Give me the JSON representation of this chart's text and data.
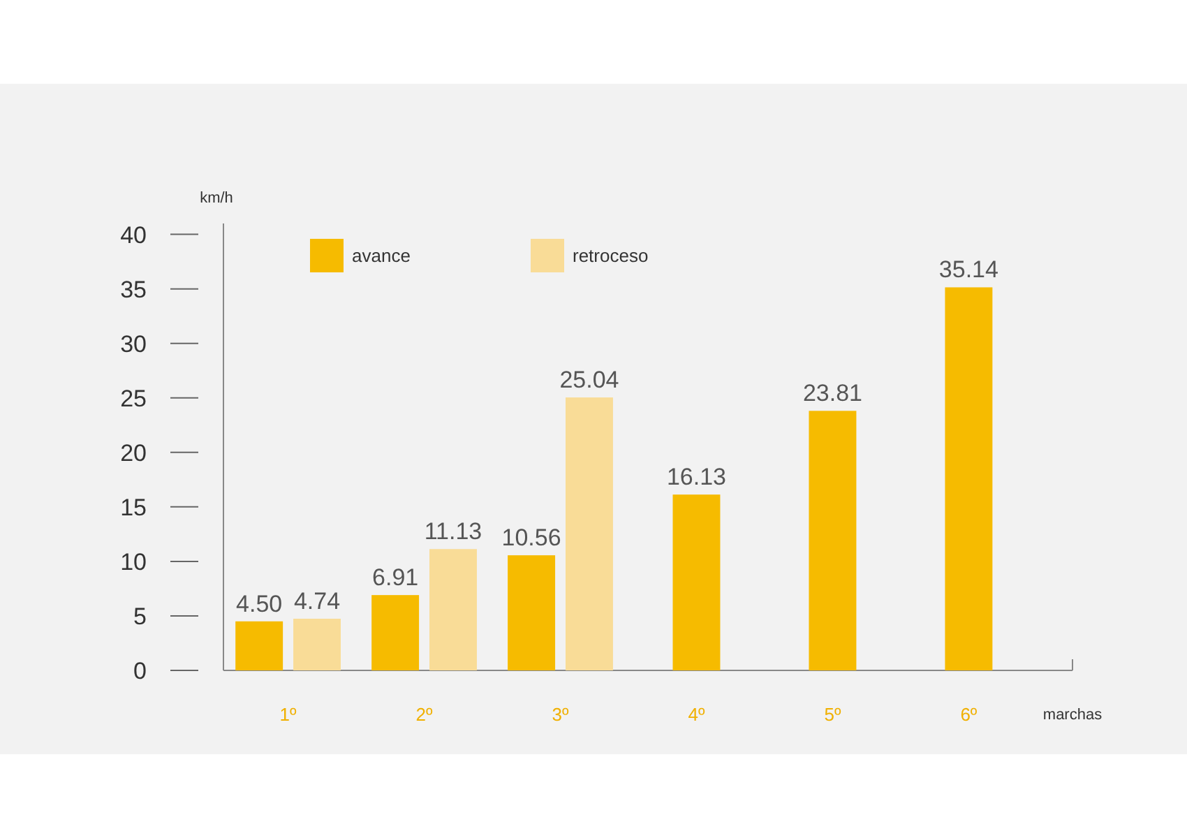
{
  "chart_data": {
    "type": "bar",
    "xlabel": "marchas",
    "ylabel": "km/h",
    "categories": [
      "1º",
      "2º",
      "3º",
      "4º",
      "5º",
      "6º"
    ],
    "series": [
      {
        "name": "avance",
        "color": "#f6bb00",
        "values": [
          4.5,
          6.91,
          10.56,
          16.13,
          23.81,
          35.14
        ],
        "value_labels": [
          "4.50",
          "6.91",
          "10.56",
          "16.13",
          "23.81",
          "35.14"
        ]
      },
      {
        "name": "retroceso",
        "color": "#f9dc97",
        "values": [
          4.74,
          11.13,
          25.04,
          null,
          null,
          null
        ],
        "value_labels": [
          "4.74",
          "11.13",
          "25.04",
          null,
          null,
          null
        ]
      }
    ],
    "ylim": [
      0,
      41
    ],
    "yticks": [
      0,
      5,
      10,
      15,
      20,
      25,
      30,
      35,
      40
    ],
    "grid": false,
    "legend": "top left"
  }
}
